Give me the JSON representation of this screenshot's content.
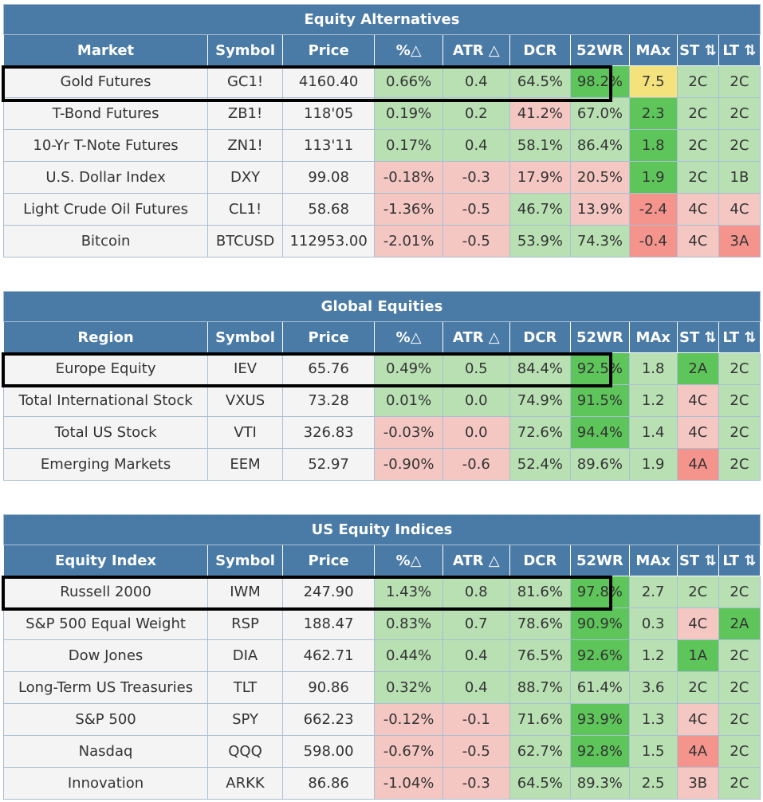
{
  "columns": [
    "Symbol",
    "Price",
    "%△",
    "ATR △",
    "DCR",
    "52WR",
    "MAx",
    "ST ⇅",
    "LT ⇅"
  ],
  "sections": [
    {
      "title": "Equity Alternatives",
      "first_col": "Market",
      "rows": [
        {
          "name": "Gold Futures",
          "symbol": "GC1!",
          "price": "4160.40",
          "chg": "0.66%",
          "atr": "0.4",
          "dcr": "64.5%",
          "wr52": "98.2%",
          "max": "7.5",
          "st": "2C",
          "lt": "2C",
          "cls": [
            "gy",
            "gy",
            "gy",
            "lg",
            "lg",
            "lg",
            "dg",
            "yl",
            "lg",
            "lg"
          ]
        },
        {
          "name": "T-Bond Futures",
          "symbol": "ZB1!",
          "price": "118'05",
          "chg": "0.19%",
          "atr": "0.2",
          "dcr": "41.2%",
          "wr52": "67.0%",
          "max": "2.3",
          "st": "2C",
          "lt": "2C",
          "cls": [
            "gy",
            "gy",
            "gy",
            "lg",
            "lg",
            "lr",
            "lg",
            "dg",
            "lg",
            "lg"
          ]
        },
        {
          "name": "10-Yr T-Note Futures",
          "symbol": "ZN1!",
          "price": "113'11",
          "chg": "0.17%",
          "atr": "0.4",
          "dcr": "58.1%",
          "wr52": "86.4%",
          "max": "1.8",
          "st": "2C",
          "lt": "2C",
          "cls": [
            "gy",
            "gy",
            "gy",
            "lg",
            "lg",
            "lg",
            "lg",
            "dg",
            "lg",
            "lg"
          ]
        },
        {
          "name": "U.S. Dollar Index",
          "symbol": "DXY",
          "price": "99.08",
          "chg": "-0.18%",
          "atr": "-0.3",
          "dcr": "17.9%",
          "wr52": "20.5%",
          "max": "1.9",
          "st": "2C",
          "lt": "1B",
          "cls": [
            "gy",
            "gy",
            "gy",
            "lr",
            "lr",
            "lr",
            "lr",
            "dg",
            "lg",
            "lg"
          ]
        },
        {
          "name": "Light Crude Oil Futures",
          "symbol": "CL1!",
          "price": "58.68",
          "chg": "-1.36%",
          "atr": "-0.5",
          "dcr": "46.7%",
          "wr52": "13.9%",
          "max": "-2.4",
          "st": "4C",
          "lt": "4C",
          "cls": [
            "gy",
            "gy",
            "gy",
            "lr",
            "lr",
            "lg",
            "lr",
            "dr",
            "lr",
            "lr"
          ]
        },
        {
          "name": "Bitcoin",
          "symbol": "BTCUSD",
          "price": "112953.00",
          "chg": "-2.01%",
          "atr": "-0.5",
          "dcr": "53.9%",
          "wr52": "74.3%",
          "max": "-0.4",
          "st": "4C",
          "lt": "3A",
          "cls": [
            "gy",
            "gy",
            "gy",
            "lr",
            "lr",
            "lg",
            "lg",
            "dr",
            "lr",
            "dr"
          ]
        }
      ]
    },
    {
      "title": "Global Equities",
      "first_col": "Region",
      "rows": [
        {
          "name": "Europe Equity",
          "symbol": "IEV",
          "price": "65.76",
          "chg": "0.49%",
          "atr": "0.5",
          "dcr": "84.4%",
          "wr52": "92.5%",
          "max": "1.8",
          "st": "2A",
          "lt": "2C",
          "cls": [
            "gy",
            "gy",
            "gy",
            "lg",
            "lg",
            "lg",
            "dg",
            "lg",
            "dg",
            "lg"
          ]
        },
        {
          "name": "Total International Stock",
          "symbol": "VXUS",
          "price": "73.28",
          "chg": "0.01%",
          "atr": "0.0",
          "dcr": "74.9%",
          "wr52": "91.5%",
          "max": "1.2",
          "st": "4C",
          "lt": "2C",
          "cls": [
            "gy",
            "gy",
            "gy",
            "lg",
            "lg",
            "lg",
            "dg",
            "lg",
            "lr",
            "lg"
          ]
        },
        {
          "name": "Total US Stock",
          "symbol": "VTI",
          "price": "326.83",
          "chg": "-0.03%",
          "atr": "0.0",
          "dcr": "72.6%",
          "wr52": "94.4%",
          "max": "1.4",
          "st": "4C",
          "lt": "2C",
          "cls": [
            "gy",
            "gy",
            "gy",
            "lr",
            "lr",
            "lg",
            "dg",
            "lg",
            "lr",
            "lg"
          ]
        },
        {
          "name": "Emerging Markets",
          "symbol": "EEM",
          "price": "52.97",
          "chg": "-0.90%",
          "atr": "-0.6",
          "dcr": "52.4%",
          "wr52": "89.6%",
          "max": "1.9",
          "st": "4A",
          "lt": "2C",
          "cls": [
            "gy",
            "gy",
            "gy",
            "lr",
            "lr",
            "lg",
            "lg",
            "lg",
            "dr",
            "lg"
          ]
        }
      ]
    },
    {
      "title": "US Equity Indices",
      "first_col": "Equity Index",
      "rows": [
        {
          "name": "Russell 2000",
          "symbol": "IWM",
          "price": "247.90",
          "chg": "1.43%",
          "atr": "0.8",
          "dcr": "81.6%",
          "wr52": "97.8%",
          "max": "2.7",
          "st": "2C",
          "lt": "2C",
          "cls": [
            "gy",
            "gy",
            "gy",
            "lg",
            "lg",
            "lg",
            "dg",
            "lg",
            "lg",
            "lg"
          ]
        },
        {
          "name": "S&P 500 Equal Weight",
          "symbol": "RSP",
          "price": "188.47",
          "chg": "0.83%",
          "atr": "0.7",
          "dcr": "78.6%",
          "wr52": "90.9%",
          "max": "0.3",
          "st": "4C",
          "lt": "2A",
          "cls": [
            "gy",
            "gy",
            "gy",
            "lg",
            "lg",
            "lg",
            "dg",
            "lg",
            "lr",
            "dg"
          ]
        },
        {
          "name": "Dow Jones",
          "symbol": "DIA",
          "price": "462.71",
          "chg": "0.44%",
          "atr": "0.4",
          "dcr": "76.5%",
          "wr52": "92.6%",
          "max": "1.2",
          "st": "1A",
          "lt": "2C",
          "cls": [
            "gy",
            "gy",
            "gy",
            "lg",
            "lg",
            "lg",
            "dg",
            "lg",
            "dg",
            "lg"
          ]
        },
        {
          "name": "Long-Term US Treasuries",
          "symbol": "TLT",
          "price": "90.86",
          "chg": "0.32%",
          "atr": "0.4",
          "dcr": "88.7%",
          "wr52": "61.4%",
          "max": "3.6",
          "st": "2C",
          "lt": "2C",
          "cls": [
            "gy",
            "gy",
            "gy",
            "lg",
            "lg",
            "lg",
            "lg",
            "lg",
            "lg",
            "lg"
          ]
        },
        {
          "name": "S&P 500",
          "symbol": "SPY",
          "price": "662.23",
          "chg": "-0.12%",
          "atr": "-0.1",
          "dcr": "71.6%",
          "wr52": "93.9%",
          "max": "1.3",
          "st": "4C",
          "lt": "2C",
          "cls": [
            "gy",
            "gy",
            "gy",
            "lr",
            "lr",
            "lg",
            "dg",
            "lg",
            "lr",
            "lg"
          ]
        },
        {
          "name": "Nasdaq",
          "symbol": "QQQ",
          "price": "598.00",
          "chg": "-0.67%",
          "atr": "-0.5",
          "dcr": "62.7%",
          "wr52": "92.8%",
          "max": "1.5",
          "st": "4A",
          "lt": "2C",
          "cls": [
            "gy",
            "gy",
            "gy",
            "lr",
            "lr",
            "lg",
            "dg",
            "lg",
            "dr",
            "lg"
          ]
        },
        {
          "name": "Innovation",
          "symbol": "ARKK",
          "price": "86.86",
          "chg": "-1.04%",
          "atr": "-0.3",
          "dcr": "64.5%",
          "wr52": "89.3%",
          "max": "2.5",
          "st": "3B",
          "lt": "2C",
          "cls": [
            "gy",
            "gy",
            "gy",
            "lr",
            "lr",
            "lg",
            "lg",
            "lg",
            "lr",
            "lg"
          ]
        }
      ]
    }
  ]
}
